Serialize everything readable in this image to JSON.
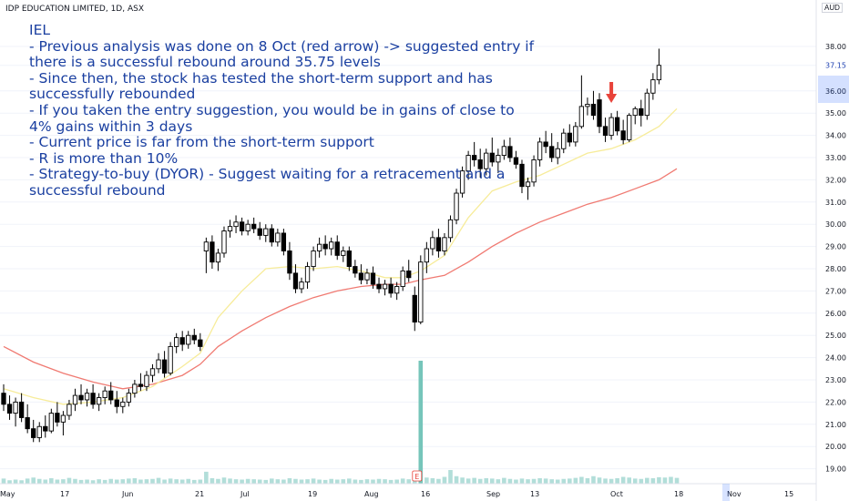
{
  "header": {
    "title": "IDP EDUCATION LIMITED, 1D, ASX",
    "currency": "AUD"
  },
  "annotation": [
    "IEL",
    "- Previous analysis was done on 8 Oct (red arrow) -> suggested entry if there is a successful rebound around 35.75 levels",
    "- Since then, the stock has tested the short-term support and has successfully rebounded",
    "- If you taken the entry suggestion, you would be in gains of close to 4% gains within 3 days",
    "- Current price is far from the short-term support",
    "- R is more than 10%",
    "- Strategy-to-buy (DYOR) - Suggest waiting for a retracement and a successful rebound"
  ],
  "colors": {
    "up": "#ffffff",
    "down": "#000000",
    "ema_short": "#f7ec9a",
    "ema_long": "#f07a72",
    "arrow": "#e8433a",
    "volume": "#9fd6cf",
    "volume_spike": "#6fc2b6",
    "grid": "#f0f3fa"
  },
  "chart_data": {
    "type": "candlestick",
    "title": "IDP EDUCATION LIMITED, 1D, ASX",
    "y_axis": {
      "ticks": [
        "38.00",
        "37.15",
        "36.00",
        "35.00",
        "34.00",
        "33.00",
        "32.00",
        "31.00",
        "30.00",
        "29.00",
        "28.00",
        "27.00",
        "26.00",
        "25.00",
        "24.00",
        "23.00",
        "22.00",
        "21.00",
        "20.00",
        "19.00"
      ],
      "ylim": [
        18.7,
        39.0
      ]
    },
    "x_axis": {
      "ticks": [
        "May",
        "17",
        "Jun",
        "21",
        "Jul",
        "19",
        "Aug",
        "16",
        "Sep",
        "13",
        "Oct",
        "18",
        "Nov",
        "15"
      ]
    },
    "current_price": 37.15,
    "candles": [
      {
        "o": 22.4,
        "h": 22.8,
        "l": 21.6,
        "c": 21.9
      },
      {
        "o": 21.9,
        "h": 22.3,
        "l": 21.2,
        "c": 21.5
      },
      {
        "o": 21.5,
        "h": 22.2,
        "l": 20.9,
        "c": 22.0
      },
      {
        "o": 22.0,
        "h": 22.4,
        "l": 21.1,
        "c": 21.3
      },
      {
        "o": 21.3,
        "h": 21.9,
        "l": 20.6,
        "c": 20.8
      },
      {
        "o": 20.8,
        "h": 21.2,
        "l": 20.2,
        "c": 20.4
      },
      {
        "o": 20.4,
        "h": 21.1,
        "l": 20.2,
        "c": 20.9
      },
      {
        "o": 20.9,
        "h": 21.4,
        "l": 20.4,
        "c": 20.7
      },
      {
        "o": 20.7,
        "h": 21.7,
        "l": 20.6,
        "c": 21.5
      },
      {
        "o": 21.5,
        "h": 22.0,
        "l": 20.9,
        "c": 21.1
      },
      {
        "o": 21.1,
        "h": 21.6,
        "l": 20.5,
        "c": 21.4
      },
      {
        "o": 21.4,
        "h": 22.1,
        "l": 21.2,
        "c": 21.9
      },
      {
        "o": 21.9,
        "h": 22.6,
        "l": 21.6,
        "c": 22.3
      },
      {
        "o": 22.3,
        "h": 22.8,
        "l": 21.9,
        "c": 22.1
      },
      {
        "o": 22.1,
        "h": 22.6,
        "l": 21.8,
        "c": 22.4
      },
      {
        "o": 22.4,
        "h": 22.8,
        "l": 21.7,
        "c": 21.9
      },
      {
        "o": 21.9,
        "h": 22.4,
        "l": 21.6,
        "c": 22.2
      },
      {
        "o": 22.2,
        "h": 22.7,
        "l": 21.9,
        "c": 22.5
      },
      {
        "o": 22.5,
        "h": 22.9,
        "l": 21.9,
        "c": 22.1
      },
      {
        "o": 22.1,
        "h": 22.5,
        "l": 21.5,
        "c": 21.8
      },
      {
        "o": 21.8,
        "h": 22.2,
        "l": 21.5,
        "c": 22.0
      },
      {
        "o": 22.0,
        "h": 22.6,
        "l": 21.8,
        "c": 22.4
      },
      {
        "o": 22.4,
        "h": 23.0,
        "l": 22.2,
        "c": 22.8
      },
      {
        "o": 22.8,
        "h": 23.3,
        "l": 22.5,
        "c": 22.7
      },
      {
        "o": 22.7,
        "h": 23.4,
        "l": 22.5,
        "c": 23.2
      },
      {
        "o": 23.2,
        "h": 23.7,
        "l": 22.9,
        "c": 23.5
      },
      {
        "o": 23.5,
        "h": 24.2,
        "l": 23.3,
        "c": 23.9
      },
      {
        "o": 23.9,
        "h": 24.3,
        "l": 23.1,
        "c": 23.3
      },
      {
        "o": 23.3,
        "h": 24.7,
        "l": 23.2,
        "c": 24.5
      },
      {
        "o": 24.5,
        "h": 25.1,
        "l": 24.2,
        "c": 24.9
      },
      {
        "o": 24.9,
        "h": 25.2,
        "l": 24.3,
        "c": 24.6
      },
      {
        "o": 24.6,
        "h": 25.2,
        "l": 24.4,
        "c": 25.0
      },
      {
        "o": 25.0,
        "h": 25.3,
        "l": 24.6,
        "c": 24.8
      },
      {
        "o": 24.8,
        "h": 25.1,
        "l": 24.3,
        "c": 24.5
      },
      {
        "o": 28.8,
        "h": 29.4,
        "l": 27.8,
        "c": 29.2
      },
      {
        "o": 29.2,
        "h": 29.5,
        "l": 28.0,
        "c": 28.3
      },
      {
        "o": 28.3,
        "h": 28.9,
        "l": 27.9,
        "c": 28.7
      },
      {
        "o": 28.7,
        "h": 29.9,
        "l": 28.5,
        "c": 29.7
      },
      {
        "o": 29.7,
        "h": 30.2,
        "l": 29.4,
        "c": 29.9
      },
      {
        "o": 29.9,
        "h": 30.4,
        "l": 29.6,
        "c": 30.1
      },
      {
        "o": 30.1,
        "h": 30.3,
        "l": 29.5,
        "c": 29.7
      },
      {
        "o": 29.7,
        "h": 30.2,
        "l": 29.5,
        "c": 30.0
      },
      {
        "o": 30.0,
        "h": 30.3,
        "l": 29.6,
        "c": 29.8
      },
      {
        "o": 29.8,
        "h": 30.1,
        "l": 29.3,
        "c": 29.5
      },
      {
        "o": 29.5,
        "h": 30.0,
        "l": 29.2,
        "c": 29.8
      },
      {
        "o": 29.8,
        "h": 30.0,
        "l": 29.0,
        "c": 29.2
      },
      {
        "o": 29.2,
        "h": 29.8,
        "l": 29.0,
        "c": 29.6
      },
      {
        "o": 29.6,
        "h": 29.8,
        "l": 28.6,
        "c": 28.8
      },
      {
        "o": 28.8,
        "h": 29.2,
        "l": 27.5,
        "c": 27.8
      },
      {
        "o": 27.8,
        "h": 28.2,
        "l": 26.9,
        "c": 27.1
      },
      {
        "o": 27.1,
        "h": 27.6,
        "l": 26.9,
        "c": 27.4
      },
      {
        "o": 27.4,
        "h": 28.3,
        "l": 27.1,
        "c": 28.1
      },
      {
        "o": 28.1,
        "h": 29.0,
        "l": 27.9,
        "c": 28.8
      },
      {
        "o": 28.8,
        "h": 29.4,
        "l": 28.5,
        "c": 29.1
      },
      {
        "o": 29.1,
        "h": 29.5,
        "l": 28.6,
        "c": 28.9
      },
      {
        "o": 28.9,
        "h": 29.4,
        "l": 28.6,
        "c": 29.2
      },
      {
        "o": 29.2,
        "h": 29.5,
        "l": 28.4,
        "c": 28.6
      },
      {
        "o": 28.6,
        "h": 29.0,
        "l": 28.3,
        "c": 28.8
      },
      {
        "o": 28.8,
        "h": 29.0,
        "l": 27.9,
        "c": 28.1
      },
      {
        "o": 28.1,
        "h": 28.4,
        "l": 27.6,
        "c": 27.8
      },
      {
        "o": 27.8,
        "h": 28.2,
        "l": 27.3,
        "c": 27.5
      },
      {
        "o": 27.5,
        "h": 28.0,
        "l": 27.3,
        "c": 27.8
      },
      {
        "o": 27.8,
        "h": 28.1,
        "l": 27.1,
        "c": 27.3
      },
      {
        "o": 27.3,
        "h": 27.6,
        "l": 26.9,
        "c": 27.1
      },
      {
        "o": 27.1,
        "h": 27.5,
        "l": 26.8,
        "c": 27.3
      },
      {
        "o": 27.3,
        "h": 27.6,
        "l": 26.7,
        "c": 26.9
      },
      {
        "o": 26.9,
        "h": 27.4,
        "l": 26.6,
        "c": 27.2
      },
      {
        "o": 27.2,
        "h": 28.1,
        "l": 27.0,
        "c": 27.9
      },
      {
        "o": 27.9,
        "h": 28.4,
        "l": 27.4,
        "c": 27.6
      },
      {
        "o": 26.8,
        "h": 27.2,
        "l": 25.2,
        "c": 25.6
      },
      {
        "o": 25.6,
        "h": 28.6,
        "l": 25.5,
        "c": 28.3
      },
      {
        "o": 28.3,
        "h": 29.2,
        "l": 27.8,
        "c": 28.9
      },
      {
        "o": 28.9,
        "h": 29.7,
        "l": 28.6,
        "c": 29.4
      },
      {
        "o": 29.4,
        "h": 29.8,
        "l": 28.5,
        "c": 28.8
      },
      {
        "o": 28.8,
        "h": 29.6,
        "l": 28.6,
        "c": 29.4
      },
      {
        "o": 29.4,
        "h": 30.4,
        "l": 29.2,
        "c": 30.2
      },
      {
        "o": 30.2,
        "h": 31.6,
        "l": 30.0,
        "c": 31.4
      },
      {
        "o": 31.4,
        "h": 32.6,
        "l": 31.2,
        "c": 32.4
      },
      {
        "o": 32.4,
        "h": 33.3,
        "l": 32.0,
        "c": 33.1
      },
      {
        "o": 33.1,
        "h": 33.7,
        "l": 32.6,
        "c": 32.9
      },
      {
        "o": 32.9,
        "h": 33.4,
        "l": 32.1,
        "c": 32.5
      },
      {
        "o": 32.5,
        "h": 33.4,
        "l": 32.2,
        "c": 33.2
      },
      {
        "o": 33.2,
        "h": 33.9,
        "l": 32.6,
        "c": 32.8
      },
      {
        "o": 32.8,
        "h": 33.4,
        "l": 32.3,
        "c": 33.1
      },
      {
        "o": 33.1,
        "h": 33.8,
        "l": 32.9,
        "c": 33.5
      },
      {
        "o": 33.5,
        "h": 33.9,
        "l": 32.8,
        "c": 33.0
      },
      {
        "o": 33.0,
        "h": 33.3,
        "l": 32.5,
        "c": 32.7
      },
      {
        "o": 32.7,
        "h": 32.9,
        "l": 31.4,
        "c": 31.7
      },
      {
        "o": 31.7,
        "h": 32.1,
        "l": 31.1,
        "c": 31.9
      },
      {
        "o": 31.9,
        "h": 33.1,
        "l": 31.7,
        "c": 32.9
      },
      {
        "o": 32.9,
        "h": 33.9,
        "l": 32.6,
        "c": 33.7
      },
      {
        "o": 33.7,
        "h": 34.2,
        "l": 33.2,
        "c": 33.5
      },
      {
        "o": 33.5,
        "h": 34.1,
        "l": 32.8,
        "c": 33.0
      },
      {
        "o": 33.0,
        "h": 33.7,
        "l": 32.7,
        "c": 33.4
      },
      {
        "o": 33.4,
        "h": 34.3,
        "l": 33.2,
        "c": 34.1
      },
      {
        "o": 34.1,
        "h": 34.5,
        "l": 33.5,
        "c": 33.7
      },
      {
        "o": 33.7,
        "h": 34.6,
        "l": 33.5,
        "c": 34.4
      },
      {
        "o": 34.4,
        "h": 36.7,
        "l": 34.3,
        "c": 35.3
      },
      {
        "o": 35.3,
        "h": 35.7,
        "l": 34.9,
        "c": 35.4
      },
      {
        "o": 35.4,
        "h": 36.0,
        "l": 34.7,
        "c": 34.9
      },
      {
        "o": 35.6,
        "h": 35.9,
        "l": 34.1,
        "c": 34.4
      },
      {
        "o": 34.4,
        "h": 34.8,
        "l": 33.7,
        "c": 34.0
      },
      {
        "o": 34.0,
        "h": 35.0,
        "l": 33.8,
        "c": 34.8
      },
      {
        "o": 34.8,
        "h": 35.1,
        "l": 34.0,
        "c": 34.2
      },
      {
        "o": 34.2,
        "h": 34.7,
        "l": 33.6,
        "c": 33.8
      },
      {
        "o": 33.8,
        "h": 35.0,
        "l": 33.7,
        "c": 34.9
      },
      {
        "o": 34.9,
        "h": 35.3,
        "l": 34.5,
        "c": 35.2
      },
      {
        "o": 35.2,
        "h": 35.6,
        "l": 34.4,
        "c": 34.9
      },
      {
        "o": 34.9,
        "h": 36.1,
        "l": 34.7,
        "c": 35.9
      },
      {
        "o": 35.9,
        "h": 36.8,
        "l": 35.6,
        "c": 36.5
      },
      {
        "o": 36.5,
        "h": 37.9,
        "l": 36.3,
        "c": 37.15
      }
    ],
    "ema_short": [
      [
        0,
        22.6
      ],
      [
        5,
        22.2
      ],
      [
        10,
        21.9
      ],
      [
        15,
        22.0
      ],
      [
        20,
        22.2
      ],
      [
        25,
        22.7
      ],
      [
        30,
        23.6
      ],
      [
        33,
        24.2
      ],
      [
        36,
        25.8
      ],
      [
        40,
        27.0
      ],
      [
        44,
        28.0
      ],
      [
        48,
        28.1
      ],
      [
        52,
        28.0
      ],
      [
        56,
        28.1
      ],
      [
        60,
        27.9
      ],
      [
        64,
        27.6
      ],
      [
        67,
        27.6
      ],
      [
        70,
        27.9
      ],
      [
        74,
        28.6
      ],
      [
        78,
        30.3
      ],
      [
        82,
        31.5
      ],
      [
        86,
        31.9
      ],
      [
        90,
        32.2
      ],
      [
        94,
        32.7
      ],
      [
        98,
        33.2
      ],
      [
        102,
        33.4
      ],
      [
        106,
        33.8
      ],
      [
        110,
        34.4
      ],
      [
        113,
        35.2
      ]
    ],
    "ema_long": [
      [
        0,
        24.5
      ],
      [
        5,
        23.8
      ],
      [
        10,
        23.3
      ],
      [
        15,
        22.9
      ],
      [
        20,
        22.6
      ],
      [
        25,
        22.8
      ],
      [
        30,
        23.2
      ],
      [
        33,
        23.7
      ],
      [
        36,
        24.5
      ],
      [
        40,
        25.2
      ],
      [
        44,
        25.8
      ],
      [
        48,
        26.3
      ],
      [
        52,
        26.7
      ],
      [
        56,
        27.0
      ],
      [
        60,
        27.2
      ],
      [
        64,
        27.3
      ],
      [
        67,
        27.3
      ],
      [
        70,
        27.5
      ],
      [
        74,
        27.7
      ],
      [
        78,
        28.3
      ],
      [
        82,
        29.0
      ],
      [
        86,
        29.6
      ],
      [
        90,
        30.1
      ],
      [
        94,
        30.5
      ],
      [
        98,
        30.9
      ],
      [
        102,
        31.2
      ],
      [
        106,
        31.6
      ],
      [
        110,
        32.0
      ],
      [
        113,
        32.5
      ]
    ],
    "volume": [
      0.15,
      0.1,
      0.12,
      0.1,
      0.15,
      0.18,
      0.14,
      0.12,
      0.16,
      0.12,
      0.13,
      0.17,
      0.14,
      0.11,
      0.12,
      0.1,
      0.13,
      0.11,
      0.14,
      0.12,
      0.13,
      0.15,
      0.16,
      0.12,
      0.13,
      0.14,
      0.17,
      0.12,
      0.15,
      0.13,
      0.12,
      0.14,
      0.11,
      0.12,
      0.35,
      0.16,
      0.14,
      0.18,
      0.15,
      0.13,
      0.12,
      0.14,
      0.13,
      0.12,
      0.11,
      0.15,
      0.13,
      0.12,
      0.16,
      0.14,
      0.12,
      0.13,
      0.15,
      0.12,
      0.11,
      0.14,
      0.12,
      0.13,
      0.15,
      0.12,
      0.11,
      0.13,
      0.12,
      0.14,
      0.13,
      0.11,
      0.12,
      0.15,
      0.13,
      0.16,
      3.6,
      0.18,
      0.16,
      0.14,
      0.2,
      0.4,
      0.22,
      0.18,
      0.15,
      0.17,
      0.14,
      0.16,
      0.15,
      0.13,
      0.17,
      0.14,
      0.12,
      0.15,
      0.13,
      0.14,
      0.16,
      0.15,
      0.13,
      0.12,
      0.14,
      0.15,
      0.17,
      0.2,
      0.16,
      0.22,
      0.18,
      0.15,
      0.14,
      0.16,
      0.2,
      0.18,
      0.15,
      0.14,
      0.17,
      0.16,
      0.19,
      0.18,
      0.2,
      0.17
    ],
    "volume_spike_index": 70,
    "earnings_marker": "E",
    "arrow_index": 102
  }
}
